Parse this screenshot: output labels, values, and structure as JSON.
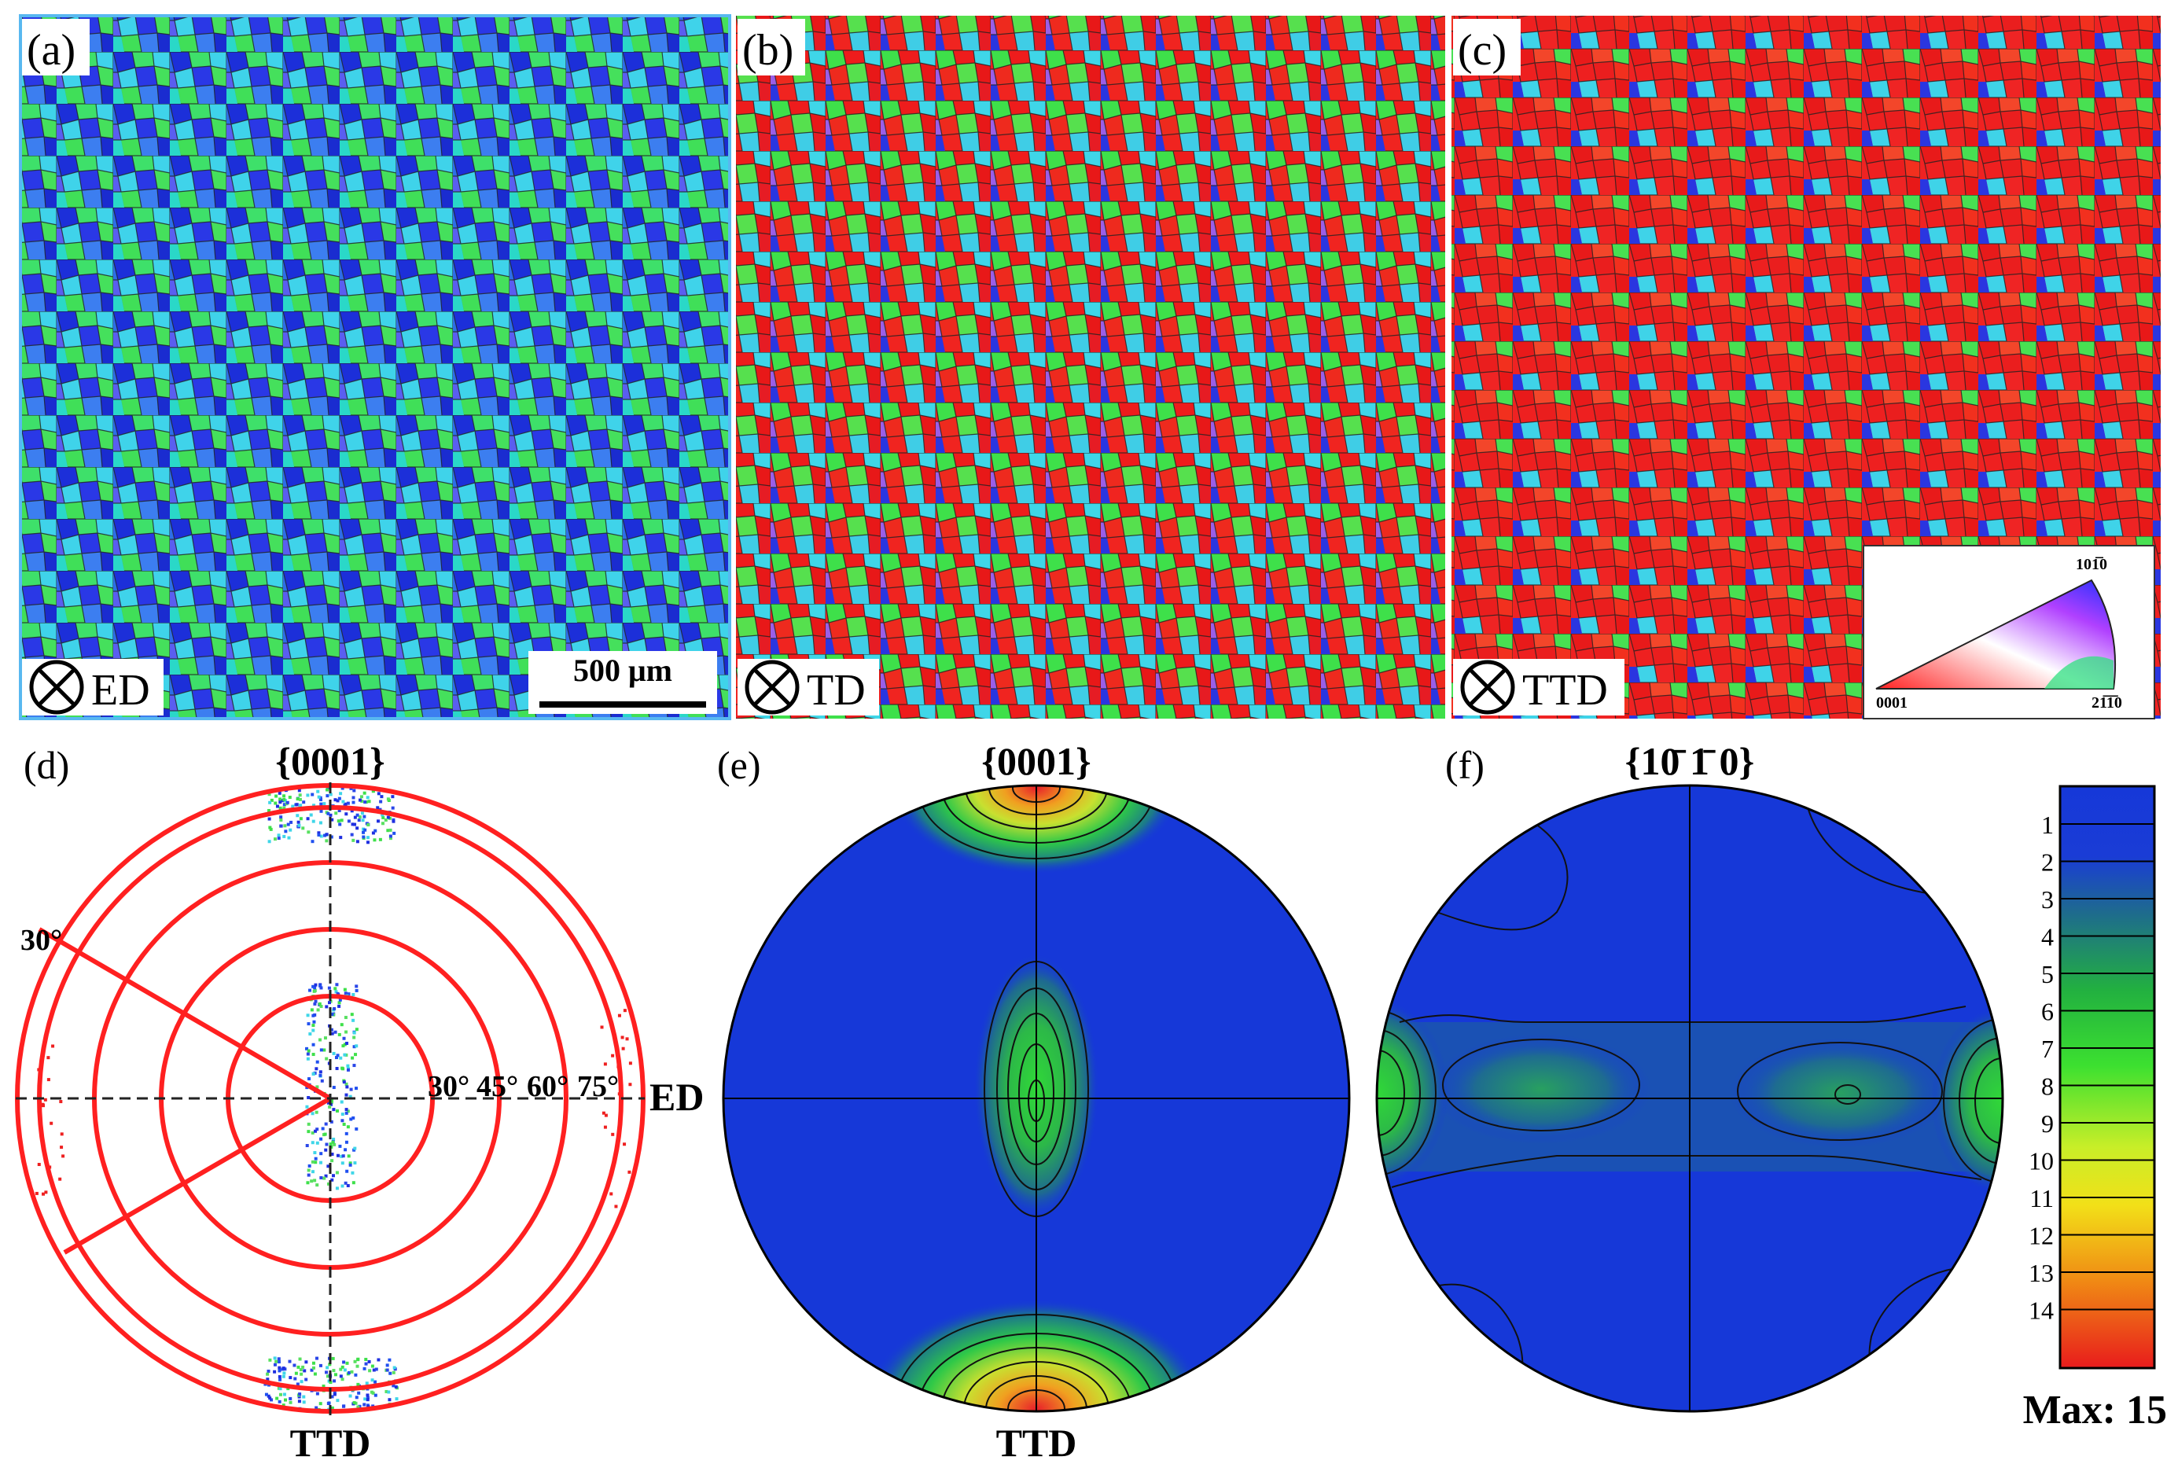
{
  "panels": {
    "a": {
      "label": "(a)",
      "direction": "ED"
    },
    "b": {
      "label": "(b)",
      "direction": "TD"
    },
    "c": {
      "label": "(c)",
      "direction": "TTD"
    },
    "d": {
      "label": "(d)",
      "title": "{0001}",
      "right_axis": "ED",
      "bottom_axis": "TTD",
      "angle_marker": "30°",
      "ring_labels": [
        "30°",
        "45°",
        "60°",
        "75°"
      ]
    },
    "e": {
      "label": "(e)",
      "title": "{0001}",
      "bottom_axis": "TTD"
    },
    "f": {
      "label": "(f)",
      "title": "{10̄ 1̄ 0}"
    }
  },
  "scale_bar": {
    "label": "500 μm"
  },
  "ipf_key": {
    "corner_0001": "0001",
    "corner_1010": "101̅0",
    "corner_2110": "21̅1̅0"
  },
  "colorbar": {
    "ticks": [
      "1",
      "2",
      "3",
      "4",
      "5",
      "6",
      "7",
      "8",
      "9",
      "10",
      "11",
      "12",
      "13",
      "14"
    ],
    "max_label": "Max: 15"
  },
  "colors": {
    "map_blue": "#1f2fe0",
    "map_green": "#3ee04a",
    "map_red": "#ee1c1c",
    "map_cyan": "#3fd6e8",
    "pf_background": "#1638d8",
    "ring_red": "#ff2020"
  }
}
